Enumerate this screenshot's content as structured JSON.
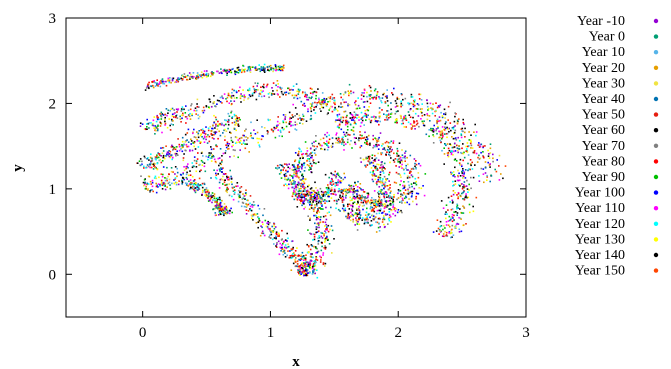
{
  "chart_data": {
    "type": "scatter",
    "xlabel": "x",
    "ylabel": "y",
    "xlim": [
      -0.6,
      3.0
    ],
    "ylim": [
      -0.5,
      3.0
    ],
    "xticks": [
      "0",
      "1",
      "2",
      "3"
    ],
    "yticks": [
      "0",
      "1",
      "2",
      "3"
    ],
    "grid": false,
    "legend_position": "right",
    "series": [
      {
        "name": "Year -10",
        "color": "#9400d3"
      },
      {
        "name": "Year 0",
        "color": "#009e73"
      },
      {
        "name": "Year 10",
        "color": "#56b4e9"
      },
      {
        "name": "Year 20",
        "color": "#e69f00"
      },
      {
        "name": "Year 30",
        "color": "#f0e442"
      },
      {
        "name": "Year 40",
        "color": "#0072b2"
      },
      {
        "name": "Year 50",
        "color": "#e51e10"
      },
      {
        "name": "Year 60",
        "color": "#000000"
      },
      {
        "name": "Year 70",
        "color": "#808080"
      },
      {
        "name": "Year 80",
        "color": "#ff0000"
      },
      {
        "name": "Year 90",
        "color": "#00c000"
      },
      {
        "name": "Year 100",
        "color": "#0000ff"
      },
      {
        "name": "Year 110",
        "color": "#ff00ff"
      },
      {
        "name": "Year 120",
        "color": "#00ffff"
      },
      {
        "name": "Year 130",
        "color": "#ffff00"
      },
      {
        "name": "Year 140",
        "color": "#000000"
      },
      {
        "name": "Year 150",
        "color": "#ff4500"
      }
    ],
    "point_bands": [
      {
        "points": [
          [
            1.25,
            0.0
          ],
          [
            1.35,
            0.2
          ],
          [
            1.4,
            0.5
          ],
          [
            1.35,
            0.8
          ],
          [
            1.25,
            1.0
          ],
          [
            1.2,
            1.25
          ],
          [
            1.3,
            1.45
          ],
          [
            1.55,
            1.6
          ],
          [
            1.85,
            1.55
          ],
          [
            2.05,
            1.35
          ],
          [
            2.1,
            1.0
          ],
          [
            1.95,
            0.75
          ],
          [
            1.75,
            0.6
          ],
          [
            1.6,
            0.75
          ],
          [
            1.55,
            1.0
          ]
        ],
        "spread": 0.05
      },
      {
        "points": [
          [
            0.0,
            1.05
          ],
          [
            0.2,
            1.1
          ],
          [
            0.45,
            1.3
          ],
          [
            0.75,
            1.55
          ],
          [
            1.05,
            1.75
          ],
          [
            1.35,
            1.95
          ],
          [
            1.7,
            2.1
          ],
          [
            2.05,
            2.05
          ],
          [
            2.35,
            1.85
          ],
          [
            2.6,
            1.5
          ],
          [
            2.75,
            1.1
          ]
        ],
        "spread": 0.06
      },
      {
        "points": [
          [
            0.35,
            1.1
          ],
          [
            0.5,
            0.95
          ],
          [
            0.6,
            0.8
          ],
          [
            0.65,
            0.7
          ]
        ],
        "spread": 0.03
      },
      {
        "points": [
          [
            0.55,
            1.25
          ],
          [
            0.75,
            0.95
          ],
          [
            0.95,
            0.6
          ],
          [
            1.1,
            0.35
          ],
          [
            1.25,
            0.15
          ],
          [
            1.3,
            0.0
          ]
        ],
        "spread": 0.04
      },
      {
        "points": [
          [
            1.5,
            1.8
          ],
          [
            1.7,
            1.85
          ],
          [
            2.0,
            1.85
          ],
          [
            2.3,
            1.7
          ],
          [
            2.45,
            1.45
          ],
          [
            2.5,
            1.05
          ],
          [
            2.45,
            0.7
          ],
          [
            2.35,
            0.45
          ]
        ],
        "spread": 0.05
      },
      {
        "points": [
          [
            0.0,
            1.7
          ],
          [
            0.2,
            1.85
          ],
          [
            0.5,
            2.0
          ],
          [
            0.85,
            2.15
          ],
          [
            1.2,
            2.15
          ],
          [
            1.5,
            2.0
          ]
        ],
        "spread": 0.05
      },
      {
        "points": [
          [
            0.0,
            2.2
          ],
          [
            0.3,
            2.3
          ],
          [
            0.6,
            2.38
          ],
          [
            0.9,
            2.42
          ],
          [
            1.1,
            2.42
          ]
        ],
        "spread": 0.02
      },
      {
        "points": [
          [
            1.1,
            1.3
          ],
          [
            1.2,
            1.0
          ],
          [
            1.3,
            0.85
          ],
          [
            1.45,
            0.95
          ],
          [
            1.55,
            1.2
          ]
        ],
        "spread": 0.04
      },
      {
        "points": [
          [
            1.6,
            1.05
          ],
          [
            1.7,
            0.9
          ],
          [
            1.85,
            0.8
          ],
          [
            1.9,
            0.95
          ],
          [
            1.85,
            1.2
          ],
          [
            1.75,
            1.4
          ]
        ],
        "spread": 0.04
      },
      {
        "points": [
          [
            0.0,
            1.25
          ],
          [
            0.15,
            1.4
          ],
          [
            0.35,
            1.55
          ],
          [
            0.55,
            1.7
          ],
          [
            0.75,
            1.85
          ]
        ],
        "spread": 0.05
      }
    ]
  }
}
